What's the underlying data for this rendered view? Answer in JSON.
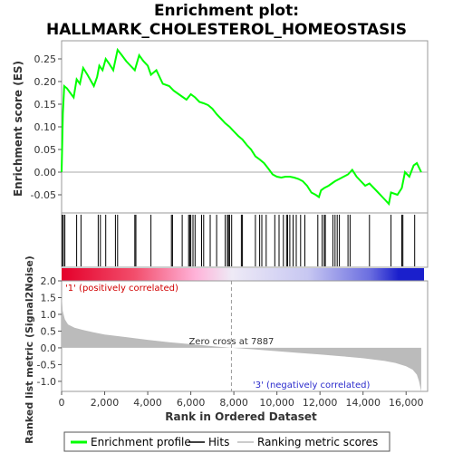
{
  "chart_data": {
    "type": "line",
    "title_line1": "Enrichment plot:",
    "title_line2": "HALLMARK_CHOLESTEROL_HOMEOSTASIS",
    "es_panel": {
      "ylabel": "Enrichment score (ES)",
      "ylim": [
        -0.09,
        0.29
      ],
      "yticks": [
        "0.25",
        "0.20",
        "0.15",
        "0.10",
        "0.05",
        "0.00",
        "-0.05"
      ],
      "ytick_values": [
        0.25,
        0.2,
        0.15,
        0.1,
        0.05,
        0.0,
        -0.05
      ],
      "color": "#00ff00",
      "x": [
        0,
        60,
        120,
        250,
        400,
        560,
        700,
        850,
        1000,
        1200,
        1500,
        1650,
        1750,
        1900,
        2050,
        2200,
        2400,
        2600,
        2800,
        3000,
        3200,
        3400,
        3600,
        3800,
        4000,
        4150,
        4400,
        4700,
        5000,
        5200,
        5500,
        5800,
        6000,
        6200,
        6400,
        6600,
        6800,
        7000,
        7200,
        7400,
        7600,
        7800,
        8000,
        8200,
        8400,
        8600,
        8800,
        9000,
        9200,
        9400,
        9600,
        9800,
        10000,
        10200,
        10400,
        10600,
        10800,
        11000,
        11200,
        11400,
        11600,
        11800,
        11950,
        12050,
        12200,
        12400,
        12550,
        12700,
        12900,
        13100,
        13300,
        13500,
        13700,
        13900,
        14100,
        14300,
        14600,
        14900,
        15200,
        15300,
        15600,
        15800,
        15950,
        16150,
        16350,
        16500,
        16700
      ],
      "y": [
        0.0,
        0.13,
        0.19,
        0.185,
        0.175,
        0.165,
        0.205,
        0.195,
        0.23,
        0.215,
        0.19,
        0.21,
        0.235,
        0.225,
        0.25,
        0.24,
        0.225,
        0.27,
        0.258,
        0.245,
        0.235,
        0.225,
        0.258,
        0.245,
        0.235,
        0.215,
        0.225,
        0.195,
        0.19,
        0.18,
        0.17,
        0.16,
        0.172,
        0.165,
        0.155,
        0.152,
        0.148,
        0.14,
        0.128,
        0.118,
        0.108,
        0.1,
        0.09,
        0.08,
        0.072,
        0.06,
        0.05,
        0.035,
        0.028,
        0.02,
        0.008,
        -0.005,
        -0.01,
        -0.012,
        -0.01,
        -0.01,
        -0.012,
        -0.015,
        -0.02,
        -0.03,
        -0.045,
        -0.05,
        -0.055,
        -0.04,
        -0.035,
        -0.03,
        -0.025,
        -0.02,
        -0.015,
        -0.01,
        -0.005,
        0.005,
        -0.01,
        -0.02,
        -0.03,
        -0.025,
        -0.04,
        -0.055,
        -0.07,
        -0.045,
        -0.05,
        -0.035,
        0.0,
        -0.01,
        0.015,
        0.02,
        0.0
      ]
    },
    "hits_panel": {
      "hit_ranks": [
        30,
        80,
        150,
        700,
        900,
        1700,
        1800,
        2050,
        2500,
        2600,
        3400,
        3450,
        4150,
        5100,
        5150,
        5600,
        5900,
        5950,
        6000,
        6100,
        6200,
        6500,
        6600,
        6900,
        7200,
        7600,
        7700,
        7750,
        7800,
        7900,
        8350,
        8400,
        9000,
        9200,
        9300,
        9500,
        9900,
        10100,
        10300,
        10450,
        10500,
        10600,
        10750,
        10900,
        11100,
        11300,
        11900,
        12100,
        12200,
        12250,
        12600,
        12700,
        12800,
        12900,
        13300,
        13400,
        14300,
        15300,
        15800,
        15850,
        16400
      ]
    },
    "metric_panel": {
      "ylabel": "Ranked list metric (Signal2Noise)",
      "ylim": [
        -1.3,
        2.0
      ],
      "yticks": [
        "2.0",
        "1.5",
        "1.0",
        "0.5",
        "0.0",
        "-0.5",
        "-1.0"
      ],
      "ytick_values": [
        2.0,
        1.5,
        1.0,
        0.5,
        0.0,
        -0.5,
        -1.0
      ],
      "color": "#bbbbbb",
      "x": [
        0,
        50,
        150,
        300,
        600,
        1000,
        1500,
        2000,
        3000,
        4000,
        5000,
        6000,
        7000,
        7887,
        9000,
        10000,
        11000,
        12000,
        13000,
        14000,
        15000,
        15500,
        16000,
        16300,
        16500,
        16600,
        16700
      ],
      "y": [
        1.6,
        1.1,
        0.85,
        0.7,
        0.6,
        0.53,
        0.46,
        0.4,
        0.32,
        0.24,
        0.17,
        0.11,
        0.05,
        0.0,
        -0.05,
        -0.1,
        -0.15,
        -0.2,
        -0.25,
        -0.31,
        -0.39,
        -0.45,
        -0.55,
        -0.65,
        -0.8,
        -1.0,
        -1.3
      ],
      "zero_cross_label": "Zero cross at 7887",
      "zero_cross_rank": 7887,
      "positive_label": "'1' (positively correlated)",
      "negative_label": "'3' (negatively correlated)"
    },
    "xaxis": {
      "label": "Rank in Ordered Dataset",
      "xlim": [
        0,
        17000
      ],
      "ticks": [
        "0",
        "2,000",
        "4,000",
        "6,000",
        "8,000",
        "10,000",
        "12,000",
        "14,000",
        "16,000"
      ],
      "tick_values": [
        0,
        2000,
        4000,
        6000,
        8000,
        10000,
        12000,
        14000,
        16000
      ],
      "n_genes": 16700
    },
    "legend": {
      "placement": "bottom",
      "entries": [
        {
          "label": "Enrichment profile",
          "color": "#00ff00"
        },
        {
          "label": "Hits",
          "color": "#000000"
        },
        {
          "label": "Ranking metric scores",
          "color": "#bbbbbb"
        }
      ]
    }
  }
}
